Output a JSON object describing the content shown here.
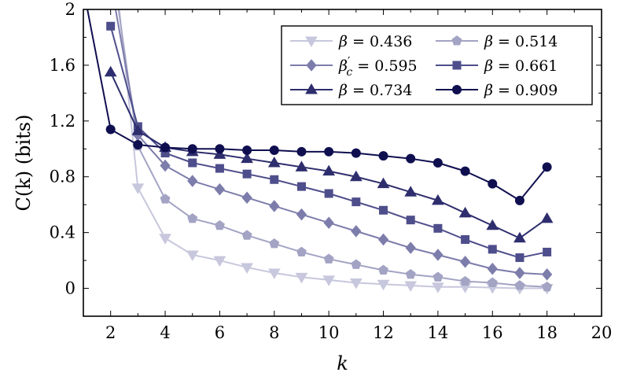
{
  "chart_data": {
    "type": "line",
    "xlabel": "k",
    "ylabel": "C(k) (bits)",
    "xlim": [
      1,
      20
    ],
    "ylim": [
      -0.2,
      2
    ],
    "xticks": [
      2,
      4,
      6,
      8,
      10,
      12,
      14,
      16,
      18,
      20
    ],
    "yticks": [
      0,
      0.4,
      0.8,
      1.2,
      1.6,
      2
    ],
    "ytick_labels": [
      "0",
      "0.4",
      "0.8",
      "1.2",
      "1.6",
      "2"
    ],
    "grid": false,
    "legend_position": "top-right",
    "series": [
      {
        "name": "β = 0.436",
        "legend_label": {
          "sym": "β",
          "sub": "",
          "prime": "",
          "rest": " = 0.436"
        },
        "color": "#c7c7dd",
        "marker": "triangle-down",
        "x": [
          2,
          3,
          4,
          5,
          6,
          7,
          8,
          9,
          10,
          11,
          12,
          13,
          14,
          15,
          16,
          17,
          18
        ],
        "y": [
          2.6,
          0.72,
          0.36,
          0.24,
          0.2,
          0.15,
          0.11,
          0.08,
          0.06,
          0.04,
          0.03,
          0.02,
          0.01,
          0.01,
          0.005,
          0.0,
          0.0
        ]
      },
      {
        "name": "β = 0.514",
        "legend_label": {
          "sym": "β",
          "sub": "",
          "prime": "",
          "rest": " = 0.514"
        },
        "color": "#a3a3c4",
        "marker": "pentagon",
        "x": [
          2,
          3,
          4,
          5,
          6,
          7,
          8,
          9,
          10,
          11,
          12,
          13,
          14,
          15,
          16,
          17,
          18
        ],
        "y": [
          2.4,
          1.02,
          0.64,
          0.5,
          0.45,
          0.38,
          0.32,
          0.26,
          0.21,
          0.17,
          0.13,
          0.1,
          0.08,
          0.05,
          0.04,
          0.02,
          0.01
        ]
      },
      {
        "name": "β'c = 0.595",
        "legend_label": {
          "sym": "β",
          "sub": "c",
          "prime": "′",
          "rest": " = 0.595"
        },
        "color": "#7d7dac",
        "marker": "diamond",
        "x": [
          2,
          3,
          4,
          5,
          6,
          7,
          8,
          9,
          10,
          11,
          12,
          13,
          14,
          15,
          16,
          17,
          18
        ],
        "y": [
          2.2,
          1.1,
          0.88,
          0.77,
          0.71,
          0.65,
          0.59,
          0.53,
          0.47,
          0.41,
          0.35,
          0.29,
          0.24,
          0.19,
          0.14,
          0.11,
          0.1
        ]
      },
      {
        "name": "β = 0.661",
        "legend_label": {
          "sym": "β",
          "sub": "",
          "prime": "",
          "rest": " = 0.661"
        },
        "color": "#4e4e8c",
        "marker": "square",
        "x": [
          2,
          3,
          4,
          5,
          6,
          7,
          8,
          9,
          10,
          11,
          12,
          13,
          14,
          15,
          16,
          17,
          18
        ],
        "y": [
          1.88,
          1.16,
          0.97,
          0.9,
          0.86,
          0.82,
          0.78,
          0.73,
          0.68,
          0.62,
          0.56,
          0.49,
          0.43,
          0.35,
          0.28,
          0.22,
          0.26
        ]
      },
      {
        "name": "β = 0.734",
        "legend_label": {
          "sym": "β",
          "sub": "",
          "prime": "",
          "rest": " = 0.734"
        },
        "color": "#2e2e6e",
        "marker": "triangle-up",
        "x": [
          2,
          3,
          4,
          5,
          6,
          7,
          8,
          9,
          10,
          11,
          12,
          13,
          14,
          15,
          16,
          17,
          18
        ],
        "y": [
          1.55,
          1.13,
          1.01,
          0.98,
          0.96,
          0.93,
          0.9,
          0.87,
          0.84,
          0.8,
          0.75,
          0.69,
          0.63,
          0.54,
          0.45,
          0.36,
          0.5
        ]
      },
      {
        "name": "β = 0.909",
        "legend_label": {
          "sym": "β",
          "sub": "",
          "prime": "",
          "rest": " = 0.909"
        },
        "color": "#0f0f50",
        "marker": "circle",
        "x": [
          1,
          2,
          3,
          4,
          5,
          6,
          7,
          8,
          9,
          10,
          11,
          12,
          13,
          14,
          15,
          16,
          17,
          18
        ],
        "y": [
          2.15,
          1.14,
          1.03,
          1.01,
          1.0,
          1.0,
          0.99,
          0.99,
          0.98,
          0.98,
          0.97,
          0.95,
          0.93,
          0.9,
          0.84,
          0.75,
          0.63,
          0.87
        ]
      }
    ]
  }
}
